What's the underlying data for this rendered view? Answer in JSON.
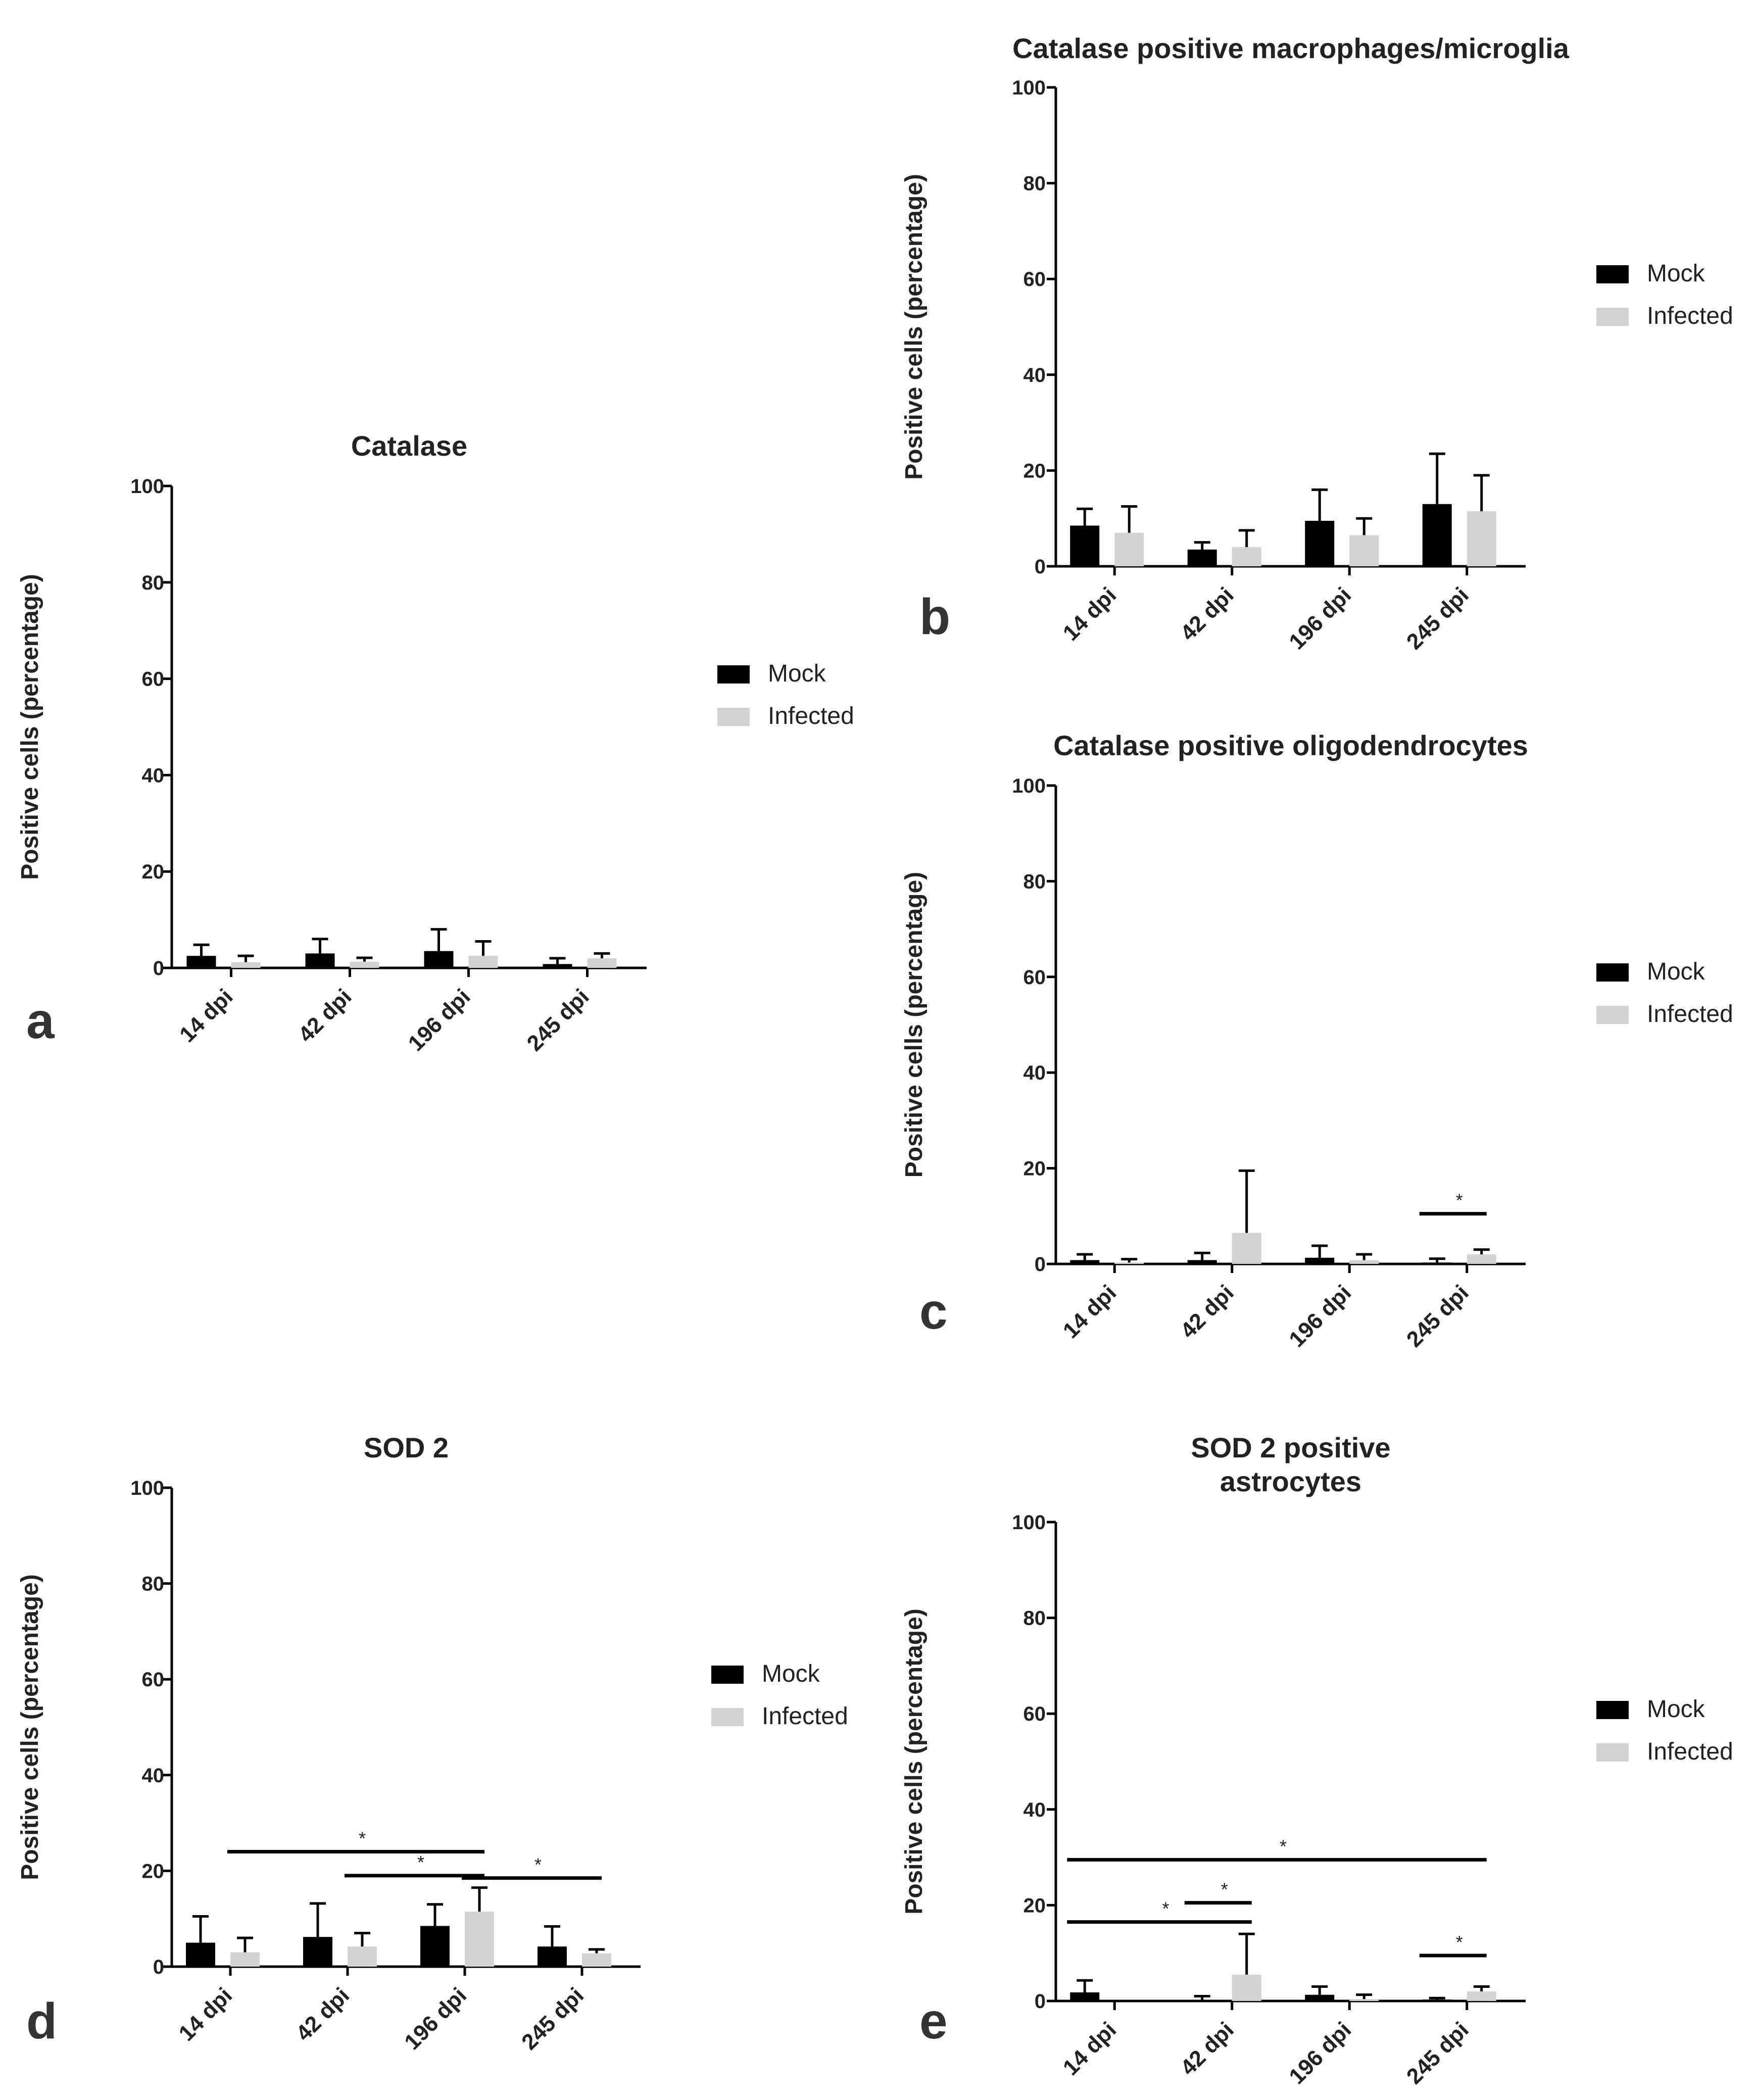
{
  "colors": {
    "mock": "#000000",
    "infected": "#d3d3d3",
    "axis": "#000000",
    "text": "#222222"
  },
  "legend": {
    "mock_label": "Mock",
    "infected_label": "Infected"
  },
  "chart_data": [
    {
      "id": "a",
      "panel_label": "a",
      "type": "bar",
      "title": "Catalase",
      "xlabel": "",
      "ylabel": "Positive cells (percentage)",
      "ylim": [
        0,
        100
      ],
      "yticks": [
        "0",
        "20",
        "40",
        "60",
        "80",
        "100"
      ],
      "categories": [
        "14 dpi",
        "42 dpi",
        "196 dpi",
        "245 dpi"
      ],
      "series": [
        {
          "name": "Mock",
          "values": [
            2.5,
            3,
            3.5,
            0.8
          ],
          "errors": [
            2.3,
            3,
            4.5,
            1.2
          ]
        },
        {
          "name": "Infected",
          "values": [
            1.2,
            1.3,
            2.5,
            2
          ],
          "errors": [
            1.3,
            0.8,
            3,
            1
          ]
        }
      ],
      "significance": []
    },
    {
      "id": "b",
      "panel_label": "b",
      "type": "bar",
      "title": "Catalase positive macrophages/microglia",
      "xlabel": "",
      "ylabel": "Positive cells (percentage)",
      "ylim": [
        0,
        100
      ],
      "yticks": [
        "0",
        "20",
        "40",
        "60",
        "80",
        "100"
      ],
      "categories": [
        "14 dpi",
        "42 dpi",
        "196 dpi",
        "245 dpi"
      ],
      "series": [
        {
          "name": "Mock",
          "values": [
            8.5,
            3.5,
            9.5,
            13
          ],
          "errors": [
            3.5,
            1.5,
            6.5,
            10.5
          ]
        },
        {
          "name": "Infected",
          "values": [
            7,
            4,
            6.5,
            11.5
          ],
          "errors": [
            5.5,
            3.5,
            3.5,
            7.5
          ]
        }
      ],
      "significance": []
    },
    {
      "id": "c",
      "panel_label": "c",
      "type": "bar",
      "title": "Catalase positive oligodendrocytes",
      "xlabel": "",
      "ylabel": "Positive cells (percentage)",
      "ylim": [
        0,
        100
      ],
      "yticks": [
        "0",
        "20",
        "40",
        "60",
        "80",
        "100"
      ],
      "categories": [
        "14 dpi",
        "42 dpi",
        "196 dpi",
        "245 dpi"
      ],
      "series": [
        {
          "name": "Mock",
          "values": [
            0.8,
            0.8,
            1.3,
            0.3
          ],
          "errors": [
            1.2,
            1.5,
            2.5,
            0.8
          ]
        },
        {
          "name": "Infected",
          "values": [
            0.3,
            6.5,
            0.8,
            2
          ],
          "errors": [
            0.7,
            13,
            1.2,
            1
          ]
        }
      ],
      "significance": [
        {
          "from": [
            3,
            0
          ],
          "to": [
            3,
            1
          ],
          "level": 10.5,
          "label": "*"
        }
      ]
    },
    {
      "id": "d",
      "panel_label": "d",
      "type": "bar",
      "title": "SOD 2",
      "xlabel": "",
      "ylabel": "Positive cells (percentage)",
      "ylim": [
        0,
        100
      ],
      "yticks": [
        "0",
        "20",
        "40",
        "60",
        "80",
        "100"
      ],
      "categories": [
        "14 dpi",
        "42 dpi",
        "196 dpi",
        "245 dpi"
      ],
      "series": [
        {
          "name": "Mock",
          "values": [
            5,
            6.2,
            8.5,
            4.2
          ],
          "errors": [
            5.5,
            7,
            4.5,
            4.2
          ]
        },
        {
          "name": "Infected",
          "values": [
            3,
            4.2,
            11.5,
            2.8
          ],
          "errors": [
            3,
            2.8,
            5,
            0.8
          ]
        }
      ],
      "significance": [
        {
          "from": [
            0,
            1
          ],
          "to": [
            2,
            1
          ],
          "level": 24,
          "label": "*"
        },
        {
          "from": [
            1,
            1
          ],
          "to": [
            2,
            1
          ],
          "level": 19,
          "label": "*"
        },
        {
          "from": [
            2,
            1
          ],
          "to": [
            3,
            1
          ],
          "level": 18.5,
          "label": "*"
        }
      ]
    },
    {
      "id": "e",
      "panel_label": "e",
      "type": "bar",
      "title": "SOD 2 positive astrocytes",
      "title_lines": [
        "SOD 2 positive",
        "astrocytes"
      ],
      "xlabel": "",
      "ylabel": "Positive cells (percentage)",
      "ylim": [
        0,
        100
      ],
      "yticks": [
        "0",
        "20",
        "40",
        "60",
        "80",
        "100"
      ],
      "categories": [
        "14 dpi",
        "42 dpi",
        "196 dpi",
        "245 dpi"
      ],
      "series": [
        {
          "name": "Mock",
          "values": [
            1.8,
            0.2,
            1.3,
            0.3
          ],
          "errors": [
            2.5,
            0.8,
            1.7,
            0.3
          ]
        },
        {
          "name": "Infected",
          "values": [
            0,
            5.5,
            0.4,
            2
          ],
          "errors": [
            0,
            8.5,
            0.9,
            1
          ]
        }
      ],
      "significance": [
        {
          "from": [
            0,
            0
          ],
          "to": [
            3,
            1
          ],
          "level": 29.5,
          "label": "*"
        },
        {
          "from": [
            0,
            0
          ],
          "to": [
            1,
            1
          ],
          "level": 16.5,
          "label": "*"
        },
        {
          "from": [
            1,
            0
          ],
          "to": [
            1,
            1
          ],
          "level": 20.5,
          "label": "*"
        },
        {
          "from": [
            3,
            0
          ],
          "to": [
            3,
            1
          ],
          "level": 9.5,
          "label": "*"
        }
      ]
    }
  ]
}
